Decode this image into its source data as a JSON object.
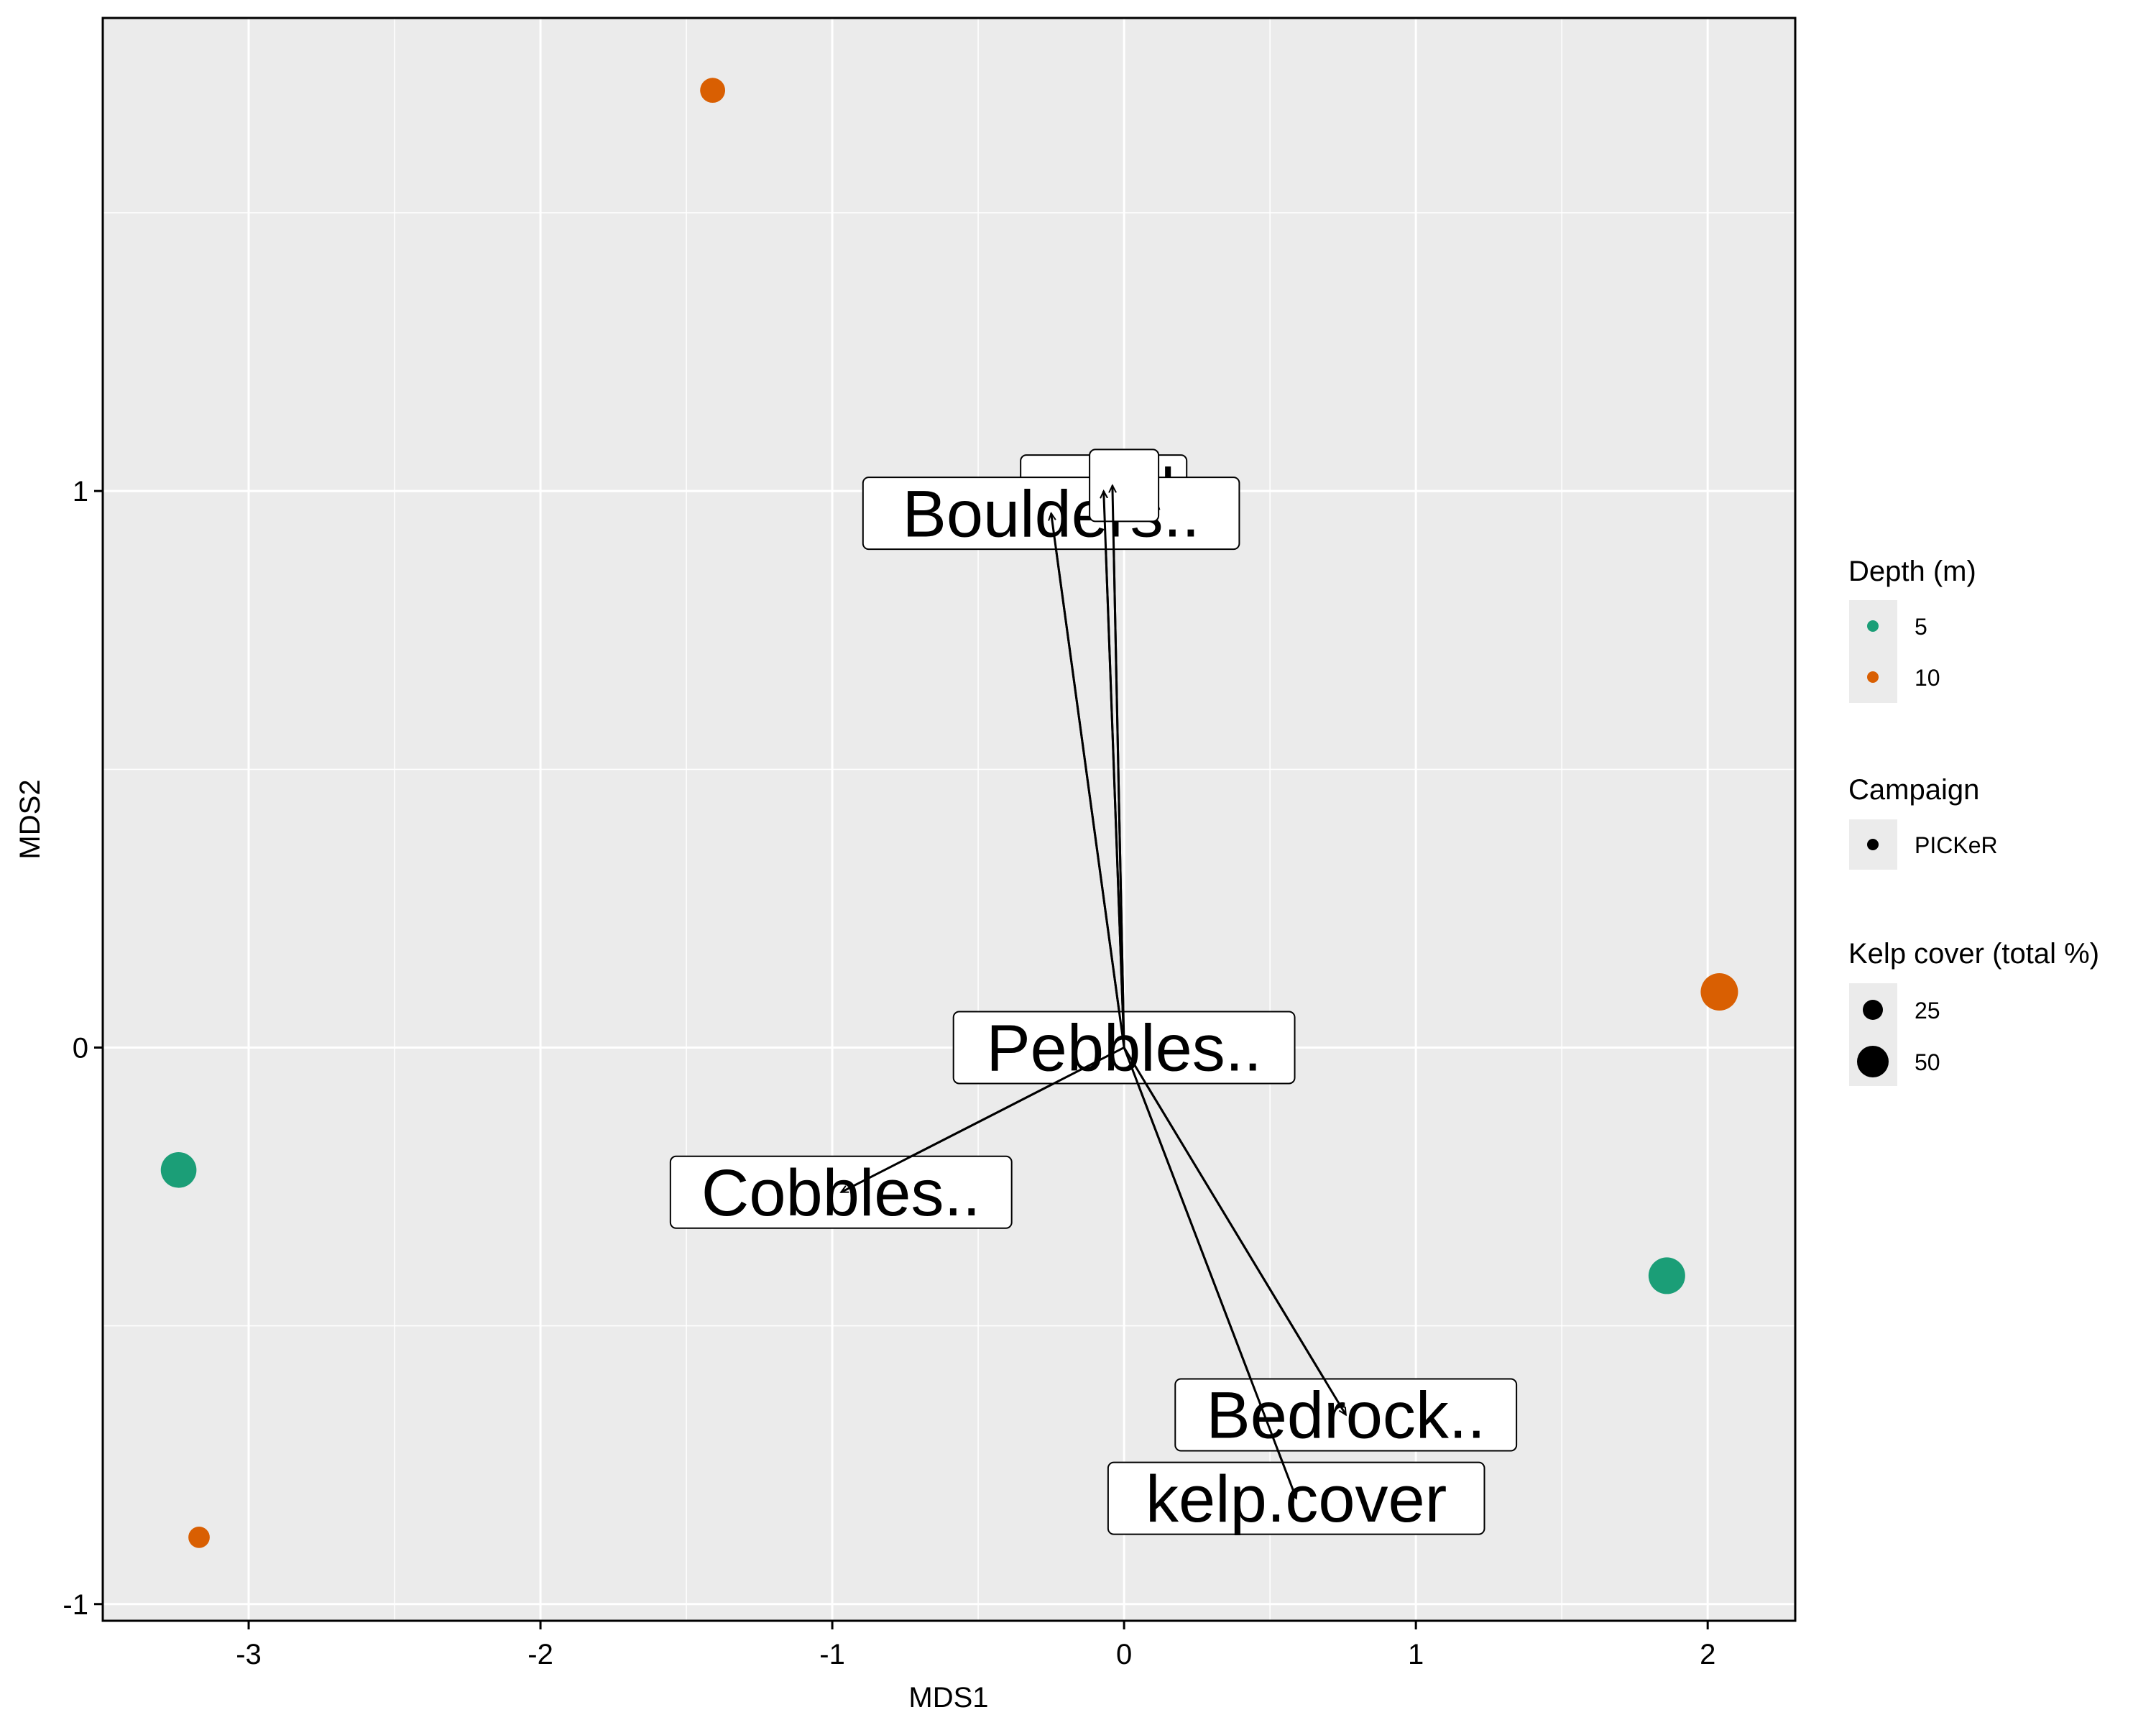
{
  "chart_data": {
    "type": "scatter",
    "xlabel": "MDS1",
    "ylabel": "MDS2",
    "xlim": [
      -3.5,
      2.3
    ],
    "ylim": [
      -1.03,
      1.85
    ],
    "x_ticks": [
      -3,
      -2,
      -1,
      0,
      1,
      2
    ],
    "x_tick_labels": [
      "-3",
      "-2",
      "-1",
      "0",
      "1",
      "2"
    ],
    "y_ticks": [
      -1,
      0,
      1
    ],
    "y_tick_labels": [
      "-1",
      "0",
      "1"
    ],
    "grid": true,
    "points": [
      {
        "x": -1.41,
        "y": 1.72,
        "depth": "10",
        "campaign": "PICKeR",
        "kelp_cover": 15
      },
      {
        "x": -3.24,
        "y": -0.22,
        "depth": "5",
        "campaign": "PICKeR",
        "kelp_cover": 48
      },
      {
        "x": -3.17,
        "y": -0.88,
        "depth": "10",
        "campaign": "PICKeR",
        "kelp_cover": 8
      },
      {
        "x": 1.86,
        "y": -0.41,
        "depth": "5",
        "campaign": "PICKeR",
        "kelp_cover": 52
      },
      {
        "x": 2.04,
        "y": 0.1,
        "depth": "10",
        "campaign": "PICKeR",
        "kelp_cover": 55
      }
    ],
    "vectors": [
      {
        "label": "sand",
        "x": -0.07,
        "y": 1.0,
        "label_x": -0.07,
        "label_y": 1.0
      },
      {
        "label": "Boulders..",
        "x": -0.25,
        "y": 0.96,
        "label_x": -0.25,
        "label_y": 0.96
      },
      {
        "label": "",
        "x": -0.04,
        "y": 1.01,
        "label_x": 0.0,
        "label_y": 1.01
      },
      {
        "label": "Pebbles..",
        "x": 0.0,
        "y": 0.0,
        "label_x": 0.0,
        "label_y": 0.0
      },
      {
        "label": "Cobbles..",
        "x": -0.97,
        "y": -0.26,
        "label_x": -0.97,
        "label_y": -0.26
      },
      {
        "label": "Bedrock..",
        "x": 0.76,
        "y": -0.66,
        "label_x": 0.76,
        "label_y": -0.66
      },
      {
        "label": "kelp.cover",
        "x": 0.59,
        "y": -0.81,
        "label_x": 0.59,
        "label_y": -0.81
      }
    ],
    "legend": {
      "placement": "right",
      "depth": {
        "title": "Depth (m)",
        "entries": [
          {
            "label": "5",
            "color": "#1b9e77"
          },
          {
            "label": "10",
            "color": "#d95f02"
          }
        ]
      },
      "campaign": {
        "title": "Campaign",
        "entries": [
          {
            "label": "PICKeR"
          }
        ]
      },
      "kelp": {
        "title": "Kelp cover (total %)",
        "entries": [
          {
            "label": "25",
            "value": 25
          },
          {
            "label": "50",
            "value": 50
          }
        ]
      }
    },
    "colors": {
      "panel_background": "#ebebeb",
      "grid": "#ffffff",
      "depth_5": "#1b9e77",
      "depth_10": "#d95f02",
      "ink": "#000000"
    }
  }
}
